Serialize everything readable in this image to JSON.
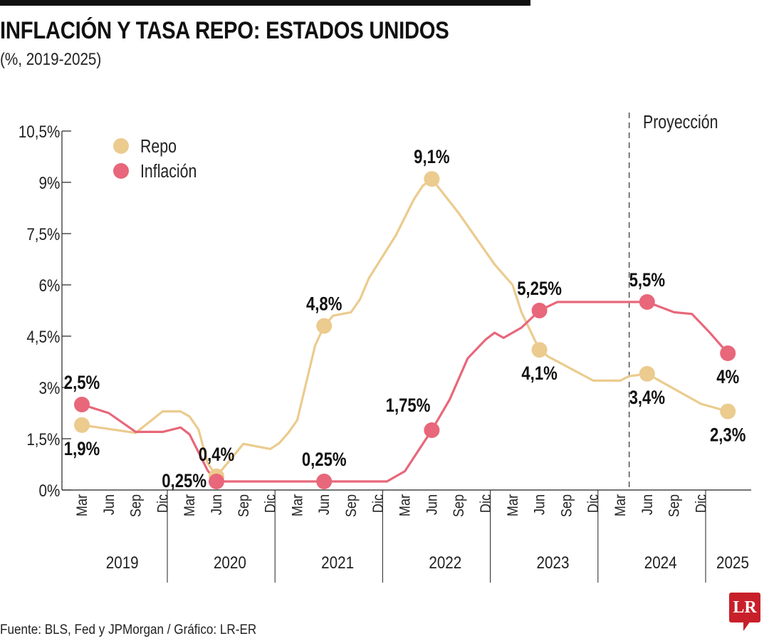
{
  "header": {
    "title": "INFLACIÓN Y TASA REPO: ESTADOS UNIDOS",
    "subtitle": "(%, 2019-2025)"
  },
  "footer": {
    "source": "Fuente: BLS, Fed y JPMorgan / Gráfico: LR-ER",
    "logo": "LR"
  },
  "colors": {
    "repo": "#EBCB8E",
    "inflacion": "#E8677A",
    "logo": "#C8202A"
  },
  "chart_data": {
    "type": "line",
    "title": "INFLACIÓN Y TASA REPO: ESTADOS UNIDOS",
    "subtitle": "(%, 2019-2025)",
    "grid": false,
    "legend_placement": "top-left",
    "ylim": [
      0,
      10.5
    ],
    "yticks": [
      0,
      1.5,
      3,
      4.5,
      6,
      7.5,
      9,
      10.5
    ],
    "ytick_labels": [
      "0%",
      "1,5%",
      "3%",
      "4,5%",
      "6%",
      "7,5%",
      "9%",
      "10,5%"
    ],
    "xlim": [
      "2019-03",
      "2025-03"
    ],
    "xtick_months": [
      "Mar",
      "Jun",
      "Sep",
      "Dic"
    ],
    "years": [
      "2019",
      "2020",
      "2021",
      "2022",
      "2023",
      "2024",
      "2025"
    ],
    "projection": {
      "label": "Proyección",
      "start": "2024-04"
    },
    "series": [
      {
        "name": "Repo",
        "color": "#EBCB8E",
        "points": [
          [
            "2019-03",
            1.9
          ],
          [
            "2019-09",
            1.67
          ],
          [
            "2019-12",
            2.3
          ],
          [
            "2020-02",
            2.3
          ],
          [
            "2020-03",
            2.15
          ],
          [
            "2020-04",
            1.77
          ],
          [
            "2020-05",
            0.8
          ],
          [
            "2020-06",
            0.4
          ],
          [
            "2020-09",
            1.35
          ],
          [
            "2020-12",
            1.2
          ],
          [
            "2021-01",
            1.37
          ],
          [
            "2021-02",
            1.67
          ],
          [
            "2021-03",
            2.04
          ],
          [
            "2021-05",
            4.23
          ],
          [
            "2021-06",
            4.8
          ],
          [
            "2021-07",
            5.1
          ],
          [
            "2021-09",
            5.2
          ],
          [
            "2021-10",
            5.58
          ],
          [
            "2021-11",
            6.2
          ],
          [
            "2022-02",
            7.45
          ],
          [
            "2022-04",
            8.5
          ],
          [
            "2022-05",
            8.9
          ],
          [
            "2022-06",
            9.1
          ],
          [
            "2022-09",
            8.1
          ],
          [
            "2023-01",
            6.6
          ],
          [
            "2023-03",
            6.0
          ],
          [
            "2023-04",
            5.2
          ],
          [
            "2023-06",
            4.1
          ],
          [
            "2023-07",
            3.9
          ],
          [
            "2023-12",
            3.2
          ],
          [
            "2024-03",
            3.2
          ],
          [
            "2024-04",
            3.33
          ],
          [
            "2024-06",
            3.4
          ],
          [
            "2024-12",
            2.52
          ],
          [
            "2025-03",
            2.3
          ]
        ]
      },
      {
        "name": "Inflación",
        "color": "#E8677A",
        "points": [
          [
            "2019-03",
            2.5
          ],
          [
            "2019-06",
            2.25
          ],
          [
            "2019-09",
            1.7
          ],
          [
            "2019-12",
            1.7
          ],
          [
            "2020-02",
            1.83
          ],
          [
            "2020-03",
            1.63
          ],
          [
            "2020-05",
            0.58
          ],
          [
            "2020-06",
            0.25
          ],
          [
            "2020-08",
            0.25
          ],
          [
            "2021-06",
            0.25
          ],
          [
            "2022-01",
            0.25
          ],
          [
            "2022-03",
            0.55
          ],
          [
            "2022-06",
            1.75
          ],
          [
            "2022-08",
            2.65
          ],
          [
            "2022-10",
            3.85
          ],
          [
            "2022-12",
            4.4
          ],
          [
            "2023-01",
            4.6
          ],
          [
            "2023-02",
            4.45
          ],
          [
            "2023-04",
            4.75
          ],
          [
            "2023-06",
            5.25
          ],
          [
            "2023-08",
            5.5
          ],
          [
            "2024-06",
            5.5
          ],
          [
            "2024-09",
            5.2
          ],
          [
            "2024-11",
            5.15
          ],
          [
            "2025-01",
            4.6
          ],
          [
            "2025-03",
            4.0
          ]
        ]
      }
    ],
    "annotations": [
      {
        "series": 0,
        "date": "2019-03",
        "value": 1.9,
        "label": "1,9%",
        "position": "below"
      },
      {
        "series": 0,
        "date": "2020-06",
        "value": 0.4,
        "label": "0,4%",
        "position": "above"
      },
      {
        "series": 0,
        "date": "2021-06",
        "value": 4.8,
        "label": "4,8%",
        "position": "above"
      },
      {
        "series": 0,
        "date": "2022-06",
        "value": 9.1,
        "label": "9,1%",
        "position": "above"
      },
      {
        "series": 0,
        "date": "2023-06",
        "value": 4.1,
        "label": "4,1%",
        "position": "below"
      },
      {
        "series": 0,
        "date": "2024-06",
        "value": 3.4,
        "label": "3,4%",
        "position": "below"
      },
      {
        "series": 0,
        "date": "2025-03",
        "value": 2.3,
        "label": "2,3%",
        "position": "below"
      },
      {
        "series": 1,
        "date": "2019-03",
        "value": 2.5,
        "label": "2,5%",
        "position": "above"
      },
      {
        "series": 1,
        "date": "2020-06",
        "value": 0.25,
        "label": "0,25%",
        "position": "left"
      },
      {
        "series": 1,
        "date": "2021-06",
        "value": 0.25,
        "label": "0,25%",
        "position": "above"
      },
      {
        "series": 1,
        "date": "2022-06",
        "value": 1.75,
        "label": "1,75%",
        "position": "upper-left"
      },
      {
        "series": 1,
        "date": "2023-06",
        "value": 5.25,
        "label": "5,25%",
        "position": "above"
      },
      {
        "series": 1,
        "date": "2024-06",
        "value": 5.5,
        "label": "5,5%",
        "position": "above"
      },
      {
        "series": 1,
        "date": "2025-03",
        "value": 4.0,
        "label": "4%",
        "position": "below"
      }
    ]
  }
}
